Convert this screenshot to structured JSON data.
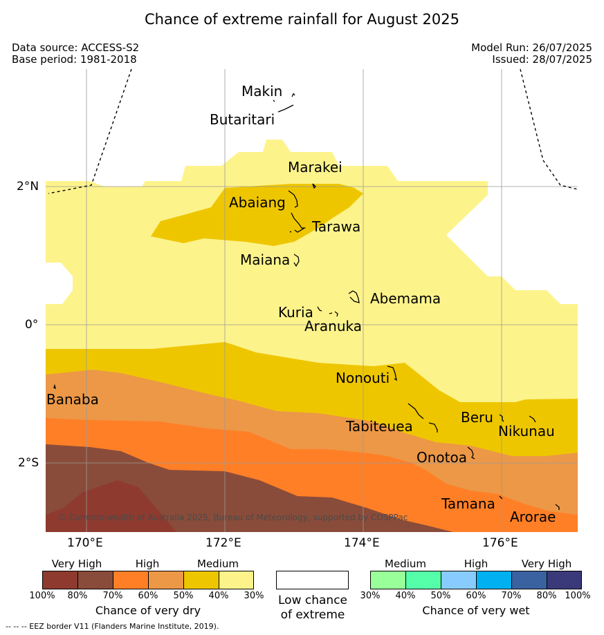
{
  "title": "Chance of extreme rainfall for August 2025",
  "data_source": "Data source: ACCESS-S2",
  "base_period": "Base period: 1981-2018",
  "model_run": "Model Run: 26/07/2025",
  "issued": "Issued: 28/07/2025",
  "copyright": "© Commonwealth of Australia 2025, Bureau of Meteorology, supported by COSPPac",
  "eez_note": "--  --  -- EEZ border V11 (Flanders Marine Institute, 2019).",
  "axes": {
    "lon_labels": [
      "170°E",
      "172°E",
      "174°E",
      "176°E"
    ],
    "lat_labels": [
      "2°N",
      "0°",
      "2°S"
    ]
  },
  "places": [
    "Makin",
    "Butaritari",
    "Marakei",
    "Abaiang",
    "Tarawa",
    "Maiana",
    "Abemama",
    "Kuria",
    "Aranuka",
    "Nonouti",
    "Banaba",
    "Tabiteuea",
    "Beru",
    "Nikunau",
    "Onotoa",
    "Tamana",
    "Arorae"
  ],
  "colors": {
    "dry_100_80": "#8e3a2f",
    "dry_80_70": "#8a4c3a",
    "dry_70_60": "#ff7f27",
    "dry_60_50": "#ec9847",
    "dry_50_40": "#eec600",
    "dry_40_30": "#fdf38b",
    "wet_30_40": "#99ff99",
    "wet_40_50": "#55ffaa",
    "wet_50_60": "#88ccff",
    "wet_60_70": "#00b0f0",
    "wet_70_80": "#3a62a0",
    "wet_80_100": "#3a3a7a"
  },
  "legend": {
    "dry": {
      "categories": [
        "Very High",
        "High",
        "Medium"
      ],
      "ticks": [
        "100%",
        "80%",
        "70%",
        "60%",
        "50%",
        "40%",
        "30%"
      ],
      "title": "Chance of very dry"
    },
    "low": {
      "line1": "Low chance",
      "line2": "of extreme"
    },
    "wet": {
      "categories": [
        "Medium",
        "High",
        "Very High"
      ],
      "ticks": [
        "30%",
        "40%",
        "50%",
        "60%",
        "70%",
        "80%",
        "100%"
      ],
      "title": "Chance of very wet"
    }
  }
}
